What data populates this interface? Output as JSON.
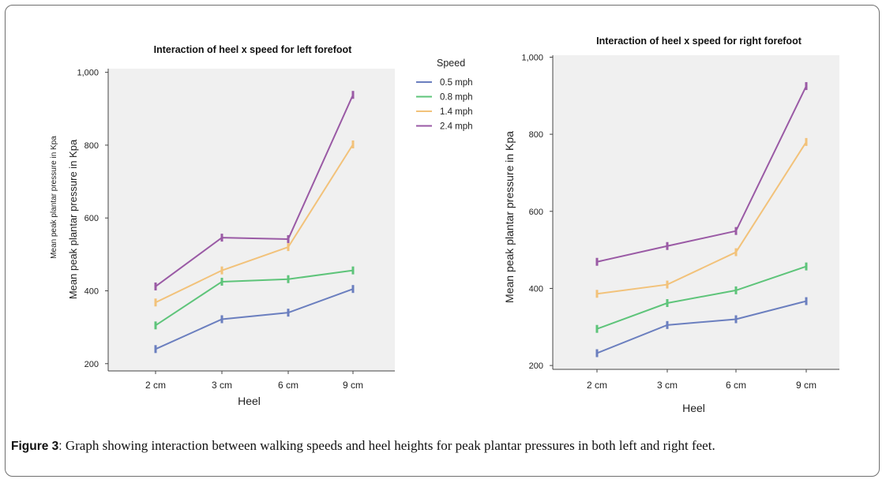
{
  "caption": {
    "label": "Figure 3",
    "separator": ":",
    "text": " Graph showing interaction between walking speeds and heel heights for peak plantar pressures in both left and right feet."
  },
  "legend": {
    "title": "Speed",
    "placement": "top-right of left chart"
  },
  "chart_data": [
    {
      "type": "line",
      "title": "Interaction of heel x speed for left forefoot",
      "xlabel": "Heel",
      "ylabel": "Mean peak plantar pressure in Kpa",
      "ylabel_secondary": "Mean peak plantar pressure in Kpa",
      "categories": [
        "2 cm",
        "3 cm",
        "6 cm",
        "9 cm"
      ],
      "ylim": [
        180,
        1010
      ],
      "yticks": [
        200,
        400,
        600,
        800,
        1000
      ],
      "ytick_labels": [
        "200",
        "400",
        "600",
        "800",
        "1,000"
      ],
      "grid": false,
      "error_bars": true,
      "series": [
        {
          "name": "0.5 mph",
          "color": "#6b7fbf",
          "values": [
            240,
            322,
            340,
            405
          ]
        },
        {
          "name": "0.8 mph",
          "color": "#5ec47a",
          "values": [
            305,
            425,
            432,
            456
          ]
        },
        {
          "name": "1.4 mph",
          "color": "#f2c27a",
          "values": [
            368,
            456,
            520,
            802
          ]
        },
        {
          "name": "2.4 mph",
          "color": "#9a5aa5",
          "values": [
            412,
            546,
            542,
            938
          ]
        }
      ]
    },
    {
      "type": "line",
      "title": "Interaction of heel x speed for right forefoot",
      "xlabel": "Heel",
      "ylabel": "Mean peak plantar pressure in Kpa",
      "categories": [
        "2 cm",
        "3 cm",
        "6 cm",
        "9 cm"
      ],
      "ylim": [
        190,
        1005
      ],
      "yticks": [
        200,
        400,
        600,
        800,
        1000
      ],
      "ytick_labels": [
        "200",
        "400",
        "600",
        "800",
        "1,000"
      ],
      "grid": false,
      "error_bars": true,
      "series": [
        {
          "name": "0.5 mph",
          "color": "#6b7fbf",
          "values": [
            232,
            305,
            320,
            367
          ]
        },
        {
          "name": "0.8 mph",
          "color": "#5ec47a",
          "values": [
            295,
            362,
            395,
            457
          ]
        },
        {
          "name": "1.4 mph",
          "color": "#f2c27a",
          "values": [
            386,
            410,
            494,
            780
          ]
        },
        {
          "name": "2.4 mph",
          "color": "#9a5aa5",
          "values": [
            469,
            510,
            549,
            925
          ]
        }
      ]
    }
  ]
}
